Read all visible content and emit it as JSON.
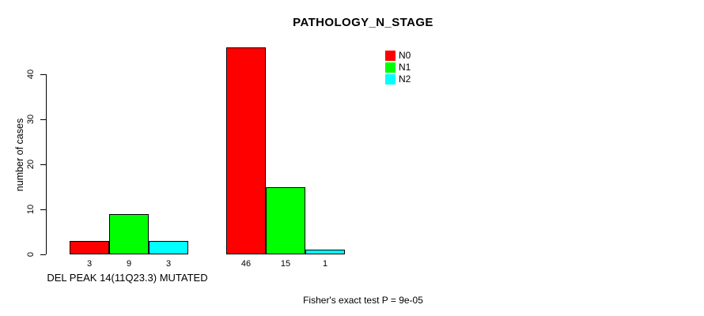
{
  "chart_data": {
    "type": "bar",
    "title": "PATHOLOGY_N_STAGE",
    "xlabel": "",
    "ylabel": "number of cases",
    "categories": [
      "DEL PEAK 14(11Q23.3) MUTATED",
      ""
    ],
    "series": [
      {
        "name": "N0",
        "color": "#ff0000",
        "values": [
          3,
          46
        ]
      },
      {
        "name": "N1",
        "color": "#00ff00",
        "values": [
          9,
          15
        ]
      },
      {
        "name": "N2",
        "color": "#00ffff",
        "values": [
          3,
          1
        ]
      }
    ],
    "yticks": [
      0,
      10,
      20,
      30,
      40
    ],
    "ylim": [
      0,
      46
    ],
    "grid": false,
    "bar_value_labels_shown": true,
    "legend_position": "top-right",
    "annotation": "Fisher's exact test P = 9e-05"
  },
  "colors": {
    "background": "#ffffff",
    "axis": "#000000",
    "bar_border": "#000000"
  }
}
